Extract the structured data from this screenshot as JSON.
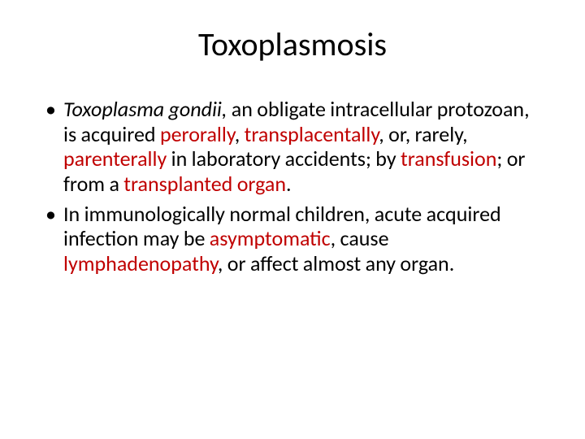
{
  "slide": {
    "title": "Toxoplasmosis",
    "title_fontsize": 40,
    "body_fontsize": 26,
    "background_color": "#ffffff",
    "text_color": "#000000",
    "highlight_color": "#c00000",
    "bullets": [
      {
        "segments": [
          {
            "text": "Toxoplasma gondii,",
            "italic": true,
            "highlight": false
          },
          {
            "text": " an obligate intracellular protozoan, is acquired ",
            "italic": false,
            "highlight": false
          },
          {
            "text": "perorally",
            "italic": false,
            "highlight": true
          },
          {
            "text": ", ",
            "italic": false,
            "highlight": false
          },
          {
            "text": "transplacentally",
            "italic": false,
            "highlight": true
          },
          {
            "text": ", or, rarely, ",
            "italic": false,
            "highlight": false
          },
          {
            "text": "parenterally",
            "italic": false,
            "highlight": true
          },
          {
            "text": " in laboratory accidents; by ",
            "italic": false,
            "highlight": false
          },
          {
            "text": "transfusion",
            "italic": false,
            "highlight": true
          },
          {
            "text": "; or from a ",
            "italic": false,
            "highlight": false
          },
          {
            "text": "transplanted organ",
            "italic": false,
            "highlight": true
          },
          {
            "text": ". ",
            "italic": false,
            "highlight": false
          }
        ]
      },
      {
        "segments": [
          {
            "text": "In immunologically normal children, acute acquired infection may be ",
            "italic": false,
            "highlight": false
          },
          {
            "text": "asymptomatic",
            "italic": false,
            "highlight": true
          },
          {
            "text": ", cause ",
            "italic": false,
            "highlight": false
          },
          {
            "text": "lymphadenopathy",
            "italic": false,
            "highlight": true
          },
          {
            "text": ", or affect almost any organ.",
            "italic": false,
            "highlight": false
          }
        ]
      }
    ]
  }
}
